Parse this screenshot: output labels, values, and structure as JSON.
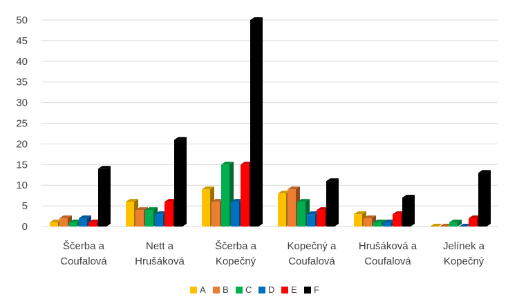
{
  "chart_data": {
    "type": "bar",
    "categories": [
      [
        "Ščerba a",
        "Coufalová"
      ],
      [
        "Nett a",
        "Hrušáková"
      ],
      [
        "Ščerba a",
        "Kopečný"
      ],
      [
        "Kopečný a",
        "Coufalová"
      ],
      [
        "Hrušáková a",
        "Coufalová"
      ],
      [
        "Jelínek a",
        "Kopečný"
      ]
    ],
    "series": [
      {
        "name": "A",
        "color": "#FFC000",
        "values": [
          1,
          6,
          9,
          8,
          3,
          0
        ]
      },
      {
        "name": "B",
        "color": "#ED7D31",
        "values": [
          2,
          4,
          6,
          9,
          2,
          0
        ]
      },
      {
        "name": "C",
        "color": "#00B050",
        "values": [
          1,
          4,
          15,
          6,
          1,
          1
        ]
      },
      {
        "name": "D",
        "color": "#0070C0",
        "values": [
          2,
          3,
          6,
          3,
          1,
          0
        ]
      },
      {
        "name": "E",
        "color": "#FF0000",
        "values": [
          1,
          6,
          15,
          4,
          3,
          2
        ]
      },
      {
        "name": "F",
        "color": "#000000",
        "values": [
          14,
          21,
          50,
          11,
          7,
          13
        ]
      }
    ],
    "ylim": [
      0,
      50
    ],
    "yticks": [
      0,
      5,
      10,
      15,
      20,
      25,
      30,
      35,
      40,
      45,
      50
    ],
    "grid": true,
    "legend_position": "bottom",
    "style": "3d-clustered-column"
  }
}
